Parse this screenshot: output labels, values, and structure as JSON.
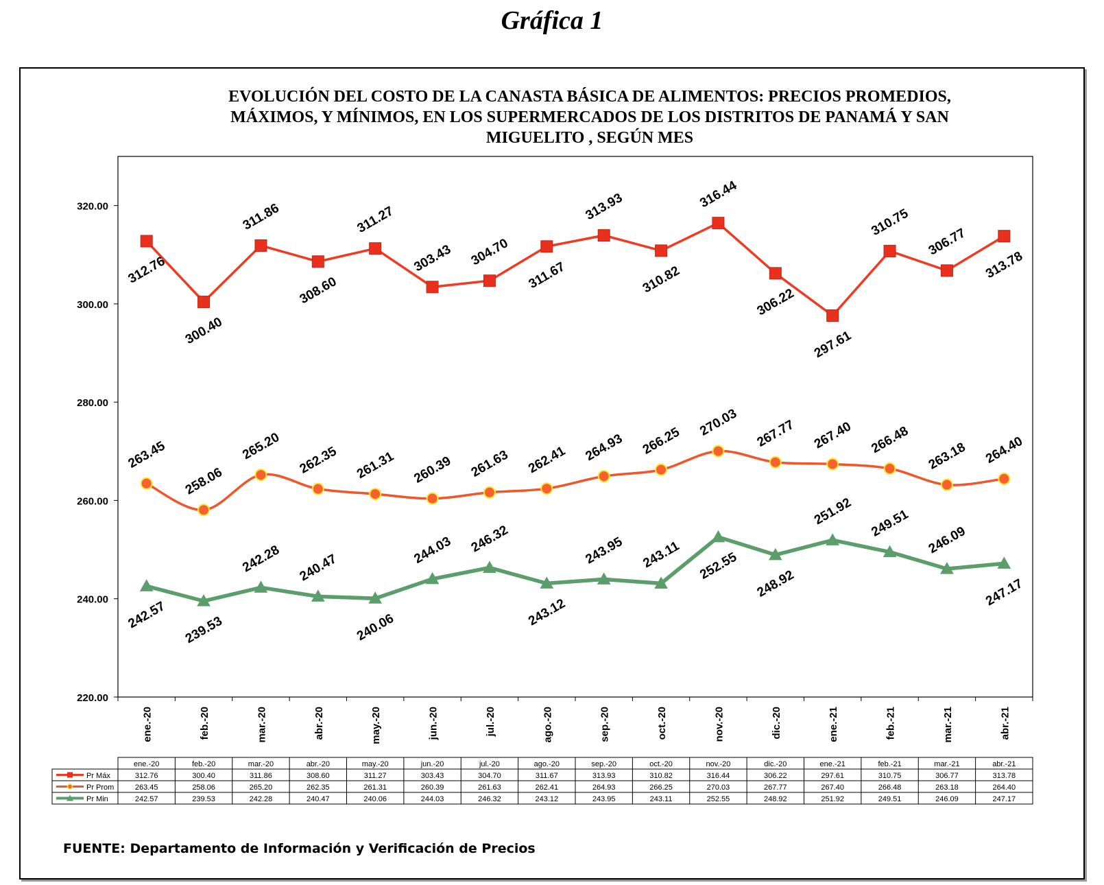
{
  "heading": "Gráfica 1",
  "source": "FUENTE:  Departamento de Información y Verificación de Precios",
  "colors": {
    "max": "#ee3b24",
    "avg": "#f0562a",
    "min": "#5b9e6b",
    "square_fill": "#e8301c",
    "circle_fill": "#f7612f",
    "circle_ring": "#f5e638"
  },
  "chart_data": {
    "type": "line",
    "title": "EVOLUCIÓN DEL COSTO DE LA CANASTA BÁSICA DE ALIMENTOS: PRECIOS PROMEDIOS, MÁXIMOS,  Y MÍNIMOS, EN LOS SUPERMERCADOS DE LOS DISTRITOS DE PANAMÁ Y SAN MIGUELITO ,  SEGÚN MES",
    "categories": [
      "ene.-20",
      "feb.-20",
      "mar.-20",
      "abr.-20",
      "may.-20",
      "jun.-20",
      "jul.-20",
      "ago.-20",
      "sep.-20",
      "oct.-20",
      "nov.-20",
      "dic.-20",
      "ene.-21",
      "feb.-21",
      "mar.-21",
      "abr.-21"
    ],
    "ylim": [
      220,
      330
    ],
    "yticks": [
      "220.00",
      "240.00",
      "260.00",
      "280.00",
      "300.00",
      "320.00"
    ],
    "grid": false,
    "series": [
      {
        "name": "Pr Máx",
        "marker": "square",
        "values": [
          312.76,
          300.4,
          311.86,
          308.6,
          311.27,
          303.43,
          304.7,
          311.67,
          313.93,
          310.82,
          316.44,
          306.22,
          297.61,
          310.75,
          306.77,
          313.78
        ]
      },
      {
        "name": "Pr Prom",
        "marker": "circle",
        "values": [
          263.45,
          258.06,
          265.2,
          262.35,
          261.31,
          260.39,
          261.63,
          262.41,
          264.93,
          266.25,
          270.03,
          267.77,
          267.4,
          266.48,
          263.18,
          264.4
        ]
      },
      {
        "name": "Pr Min",
        "marker": "triangle",
        "values": [
          242.57,
          239.53,
          242.28,
          240.47,
          240.06,
          244.03,
          246.32,
          243.12,
          243.95,
          243.11,
          252.55,
          248.92,
          251.92,
          249.51,
          246.09,
          247.17
        ]
      }
    ],
    "data_labels": {
      "max": [
        "312.76",
        "300.40",
        "311.86",
        "308.60",
        "311.27",
        "303.43",
        "304.70",
        "311.67",
        "313.93",
        "310.82",
        "316.44",
        "306.22",
        "297.61",
        "310.75",
        "306.77",
        "313.78"
      ],
      "avg": [
        "263.45",
        "258.06",
        "265.20",
        "262.35",
        "261.31",
        "260.39",
        "261.63",
        "262.41",
        "264.93",
        "266.25",
        "270.03",
        "267.77",
        "267.40",
        "266.48",
        "263.18",
        "264.40"
      ],
      "min": [
        "242.57",
        "239.53",
        "242.28",
        "240.47",
        "240.06",
        "244.03",
        "246.32",
        "243.12",
        "243.95",
        "243.11",
        "252.55",
        "248.92",
        "251.92",
        "249.51",
        "246.09",
        "247.17"
      ]
    },
    "table": {
      "header": [
        "ene.-20",
        "feb.-20",
        "mar.-20",
        "abr.-20",
        "may.-20",
        "jun.-20",
        "jul.-20",
        "ago.-20",
        "sep.-20",
        "oct.-20",
        "nov.-20",
        "dic.-20",
        "ene.-21",
        "feb.-21",
        "mar.-21",
        "abr.-21"
      ],
      "rows": [
        {
          "label": "Pr Máx",
          "cells": [
            "312.76",
            "300.40",
            "311.86",
            "308.60",
            "311.27",
            "303.43",
            "304.70",
            "311.67",
            "313.93",
            "310.82",
            "316.44",
            "306.22",
            "297.61",
            "310.75",
            "306.77",
            "313.78"
          ]
        },
        {
          "label": "Pr Prom",
          "cells": [
            "263.45",
            "258.06",
            "265.20",
            "262.35",
            "261.31",
            "260.39",
            "261.63",
            "262.41",
            "264.93",
            "266.25",
            "270.03",
            "267.77",
            "267.40",
            "266.48",
            "263.18",
            "264.40"
          ]
        },
        {
          "label": "Pr Min",
          "cells": [
            "242.57",
            "239.53",
            "242.28",
            "240.47",
            "240.06",
            "244.03",
            "246.32",
            "243.12",
            "243.95",
            "243.11",
            "252.55",
            "248.92",
            "251.92",
            "249.51",
            "246.09",
            "247.17"
          ]
        }
      ]
    }
  }
}
